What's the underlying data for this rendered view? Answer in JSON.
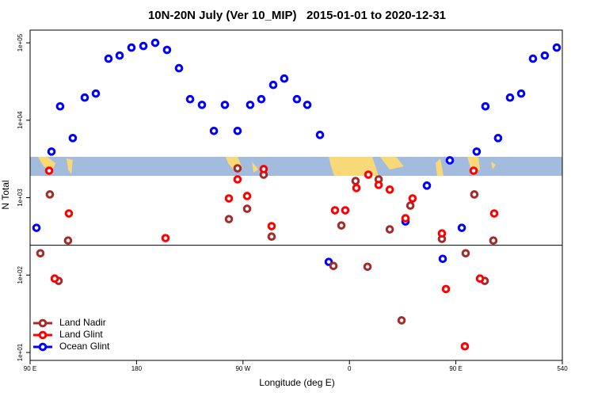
{
  "chart_data": {
    "type": "scatter",
    "title": "10N-20N July (Ver 10_MIP)   2015-01-01 to 2020-12-31",
    "x_label": "Longitude (deg E)",
    "y_label": "N Total",
    "xlim": [
      90,
      540
    ],
    "ylim": [
      7.9,
      146000
    ],
    "ylog": true,
    "hline": 243,
    "legend": "bottom-left",
    "xticks": [
      {
        "value": 90,
        "label": "90 E"
      },
      180,
      {
        "value": 270,
        "label": "90 W"
      },
      {
        "value": 360,
        "label": "0"
      },
      {
        "value": 450,
        "label": "90 E"
      },
      540
    ],
    "yticks": [
      {
        "value": 10,
        "label": "1e+01"
      },
      {
        "value": 100,
        "label": "1e+02"
      },
      {
        "value": 1000,
        "label": "1e+03"
      },
      {
        "value": 10000,
        "label": "1e+04"
      },
      {
        "value": 100000,
        "label": "1e+05"
      }
    ],
    "series": [
      {
        "name": "Land Nadir",
        "color": "#a52a2a",
        "x": [
          106.7,
          98.7,
          114.1,
          122.1,
          258.1,
          265.4,
          273.5,
          287.5,
          294.2,
          346.5,
          353.2,
          365.2,
          375.3,
          384.7,
          394.1,
          404.1,
          411.5,
          438.2,
          458.3,
          465.6,
          474.4,
          481.7
        ],
        "values": [
          1100,
          191,
          84,
          279,
          528,
          2390,
          718,
          1980,
          314,
          131,
          437,
          1640,
          128,
          1720,
          389,
          26,
          789,
          293,
          191,
          1100,
          84,
          279
        ]
      },
      {
        "name": "Land Glint",
        "color": "#ff0000",
        "x": [
          106.1,
          110.8,
          122.8,
          204.5,
          258.1,
          265.4,
          273.5,
          287.5,
          294.2,
          347.8,
          356.5,
          365.9,
          376.0,
          384.7,
          394.1,
          407.4,
          413.4,
          438.2,
          441.6,
          457.6,
          465.0,
          470.4,
          482.4
        ],
        "values": [
          2230,
          90,
          624,
          300,
          977,
          1720,
          1050,
          2340,
          428,
          686,
          686,
          1330,
          1980,
          1460,
          1270,
          541,
          977,
          345,
          66,
          12,
          2230,
          90,
          624
        ]
      },
      {
        "name": "Ocean Glint",
        "color": "#0000ff",
        "x": [
          95.4,
          108.1,
          115.4,
          126.1,
          136.2,
          145.6,
          156.3,
          165.7,
          175.7,
          185.8,
          195.8,
          205.8,
          215.9,
          225.3,
          235.3,
          245.4,
          254.7,
          265.4,
          276.1,
          285.5,
          295.6,
          304.9,
          315.6,
          324.4,
          335.1,
          342.5,
          407.4,
          425.5,
          444.9,
          438.9,
          455.0,
          467.6,
          475.0,
          485.7,
          495.8,
          505.2,
          515.2,
          525.2,
          535.3
        ],
        "values": [
          407,
          3936,
          15100,
          5880,
          19600,
          22100,
          62400,
          68500,
          86800,
          91000,
          100000,
          80900,
          47000,
          18700,
          15800,
          7280,
          15800,
          7280,
          15800,
          18700,
          28600,
          34500,
          18700,
          15800,
          6460,
          148,
          492,
          1430,
          3030,
          162,
          407,
          3936,
          15100,
          5880,
          19600,
          22100,
          62400,
          68500,
          86800
        ]
      }
    ]
  }
}
